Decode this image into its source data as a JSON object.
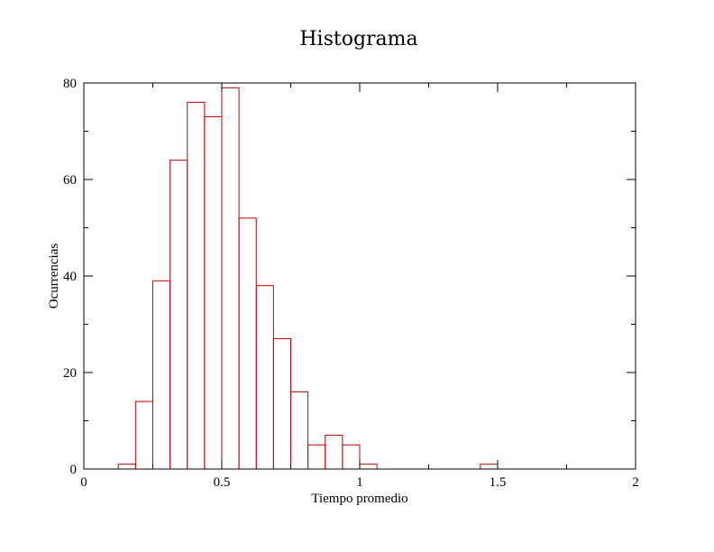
{
  "chart_data": {
    "type": "bar",
    "title": "Histograma",
    "xlabel": "Tiempo promedio",
    "ylabel": "Ocurrencias",
    "xlim": [
      0,
      2
    ],
    "ylim": [
      0,
      80
    ],
    "x_ticks": [
      "0",
      "0.5",
      "1",
      "1.5",
      "2"
    ],
    "y_ticks": [
      "0",
      "20",
      "40",
      "60",
      "80"
    ],
    "bin_width": 0.0625,
    "bins": [
      {
        "x0": 0.125,
        "value": 1
      },
      {
        "x0": 0.1875,
        "value": 14
      },
      {
        "x0": 0.25,
        "value": 39
      },
      {
        "x0": 0.3125,
        "value": 64
      },
      {
        "x0": 0.375,
        "value": 76
      },
      {
        "x0": 0.4375,
        "value": 73
      },
      {
        "x0": 0.5,
        "value": 79
      },
      {
        "x0": 0.5625,
        "value": 52
      },
      {
        "x0": 0.625,
        "value": 38
      },
      {
        "x0": 0.6875,
        "value": 27
      },
      {
        "x0": 0.75,
        "value": 16
      },
      {
        "x0": 0.8125,
        "value": 5
      },
      {
        "x0": 0.875,
        "value": 7
      },
      {
        "x0": 0.9375,
        "value": 5
      },
      {
        "x0": 1.0,
        "value": 1
      },
      {
        "x0": 1.4375,
        "value": 1
      }
    ],
    "grid": false,
    "legend": "none",
    "bar_outline_color": "#cc0000",
    "bar_fill_color": "none"
  }
}
